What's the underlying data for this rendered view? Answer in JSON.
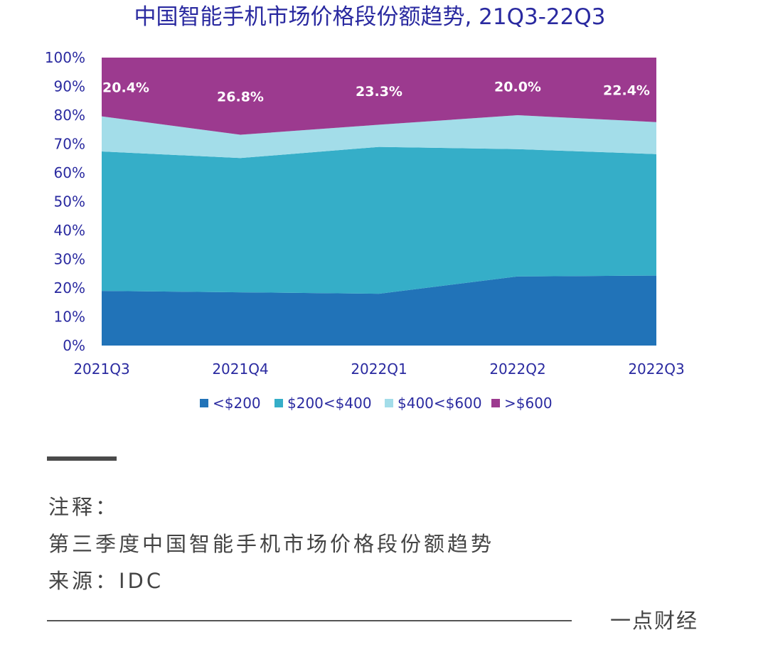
{
  "chart_data": {
    "type": "area",
    "stacked": true,
    "percent": true,
    "title": "中国智能手机市场价格段份额趋势, 21Q3-22Q3",
    "categories": [
      "2021Q3",
      "2021Q4",
      "2022Q1",
      "2022Q2",
      "2022Q3"
    ],
    "y_ticks": [
      "0%",
      "10%",
      "20%",
      "30%",
      "40%",
      "50%",
      "60%",
      "70%",
      "80%",
      "90%",
      "100%"
    ],
    "ylim": [
      0,
      100
    ],
    "grid": false,
    "legend_position": "bottom",
    "series": [
      {
        "name": "<$200",
        "color": "#2173b8",
        "values": [
          19.0,
          18.5,
          18.0,
          24.0,
          24.3
        ]
      },
      {
        "name": "$200<$400",
        "color": "#35aec8",
        "values": [
          48.4,
          46.6,
          51.0,
          44.2,
          42.2
        ]
      },
      {
        "name": "$400<$600",
        "color": "#a3dde9",
        "values": [
          12.2,
          8.1,
          7.7,
          11.8,
          11.1
        ]
      },
      {
        "name": ">$600",
        "color": "#9c3a8f",
        "values": [
          20.4,
          26.8,
          23.3,
          20.0,
          22.4
        ]
      }
    ],
    "annotations": [
      "20.4%",
      "26.8%",
      "23.3%",
      "20.0%",
      "22.4%"
    ]
  },
  "notes": {
    "label": "注释：",
    "description": "第三季度中国智能手机市场价格段份额趋势",
    "source": "来源：IDC"
  },
  "brand": "一点财经"
}
